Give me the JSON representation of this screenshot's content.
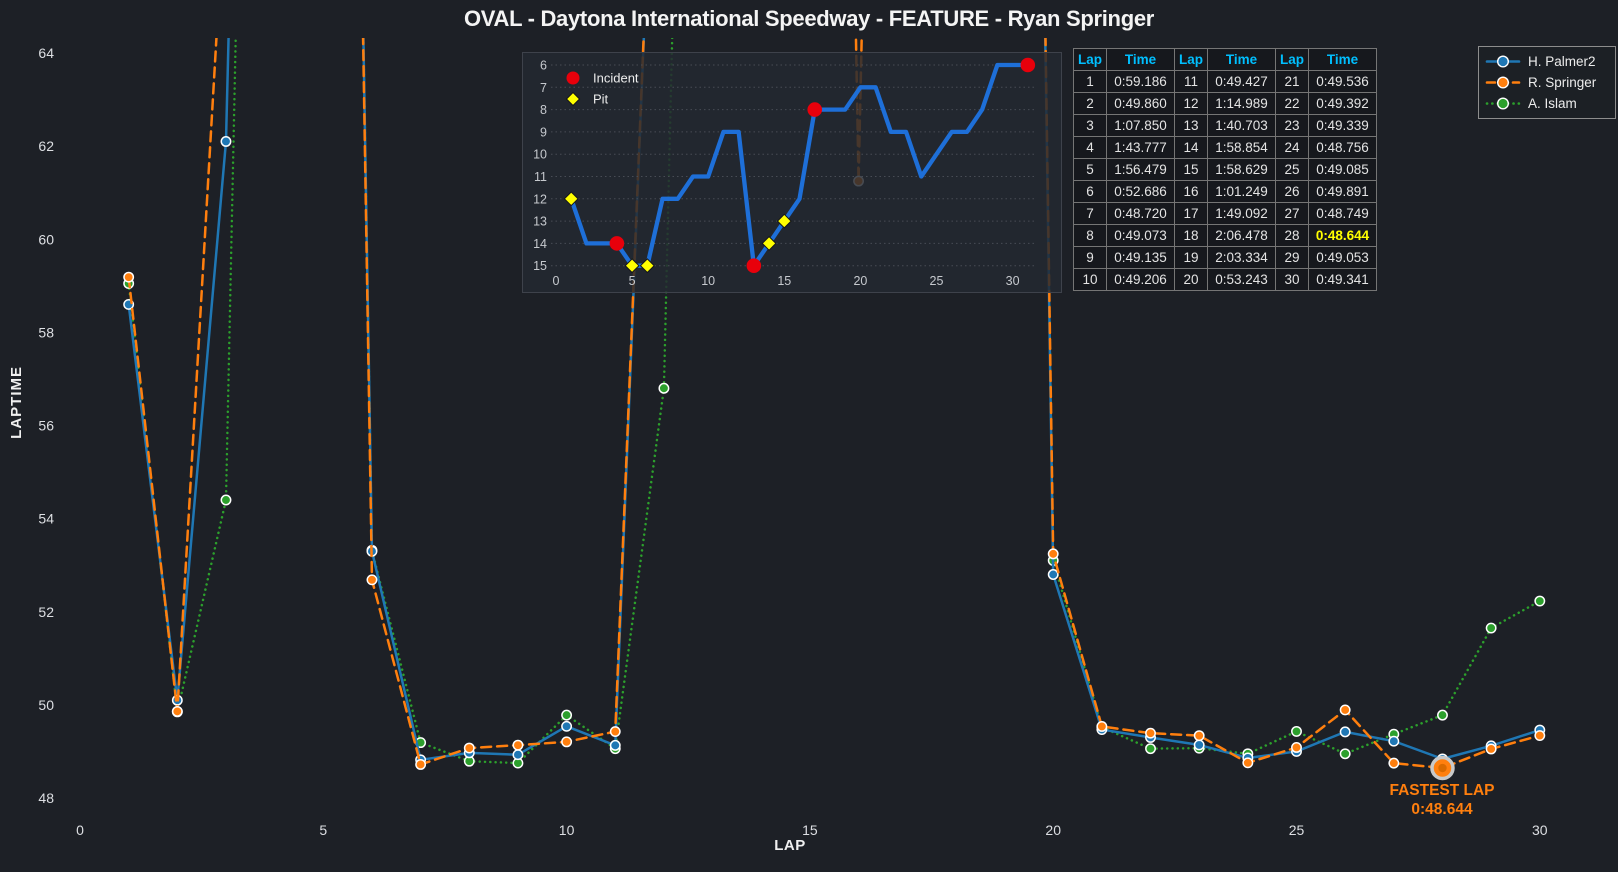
{
  "title": "OVAL - Daytona International Speedway - FEATURE - Ryan Springer",
  "colors": {
    "background": "#1d2026",
    "blue": "#1f77b4",
    "orange": "#ff7f0e",
    "green": "#2ca02c",
    "incident_red": "#e8000b",
    "pit_yellow": "#ffff00",
    "table_header": "#00bfff",
    "fastest_yellow": "#ffff00",
    "tick_text": "#dddfe3",
    "inset_line": "#1e6fd8"
  },
  "axes": {
    "y_label": "LAPTIME",
    "x_label": "LAP",
    "y_ticks": [
      48,
      50,
      52,
      54,
      56,
      58,
      60,
      62,
      64
    ],
    "x_ticks": [
      0,
      5,
      10,
      15,
      20,
      25,
      30
    ]
  },
  "legend": {
    "items": [
      {
        "label": "H. Palmer2",
        "color": "#1f77b4",
        "dash": "solid"
      },
      {
        "label": "R. Springer",
        "color": "#ff7f0e",
        "dash": "dashed"
      },
      {
        "label": "A. Islam",
        "color": "#2ca02c",
        "dash": "dotted"
      }
    ]
  },
  "annotation": {
    "title": "FASTEST LAP",
    "value": "0:48.644"
  },
  "lap_table": {
    "headers": [
      "Lap",
      "Time",
      "Lap",
      "Time",
      "Lap",
      "Time"
    ],
    "times": [
      "0:59.186",
      "0:49.860",
      "1:07.850",
      "1:43.777",
      "1:56.479",
      "0:52.686",
      "0:48.720",
      "0:49.073",
      "0:49.135",
      "0:49.206",
      "0:49.427",
      "1:14.989",
      "1:40.703",
      "1:58.854",
      "1:58.629",
      "1:01.249",
      "1:49.092",
      "2:06.478",
      "2:03.334",
      "0:53.243",
      "0:49.536",
      "0:49.392",
      "0:49.339",
      "0:48.756",
      "0:49.085",
      "0:49.891",
      "0:48.749",
      "0:48.644",
      "0:49.053",
      "0:49.341"
    ],
    "fastest_lap": 28
  },
  "inset_legend": [
    {
      "label": "Incident",
      "marker": "circle",
      "color": "#e8000b"
    },
    {
      "label": "Pit",
      "marker": "diamond",
      "color": "#ffff00"
    }
  ],
  "chart_data": [
    {
      "type": "line",
      "title": "OVAL - Daytona International Speedway - FEATURE - Ryan Springer",
      "xlabel": "LAP",
      "ylabel": "LAPTIME",
      "xlim": [
        -0.7,
        31.3
      ],
      "ylim": [
        47.7,
        64.3
      ],
      "grid": false,
      "legend_position": "top-right",
      "x": [
        1,
        2,
        3,
        4,
        5,
        6,
        7,
        8,
        9,
        10,
        11,
        12,
        13,
        14,
        15,
        16,
        17,
        18,
        19,
        20,
        21,
        22,
        23,
        24,
        25,
        26,
        27,
        28,
        29,
        30
      ],
      "series": [
        {
          "name": "H. Palmer2",
          "color": "#1f77b4",
          "line": "solid",
          "values_estimated": true,
          "values": [
            58.6,
            50.1,
            62.1,
            104,
            116,
            53.3,
            48.82,
            48.97,
            48.93,
            49.54,
            49.13,
            75,
            101,
            119,
            119,
            68,
            109,
            126,
            123,
            52.8,
            49.47,
            49.3,
            49.14,
            48.86,
            49.0,
            49.42,
            49.22,
            48.84,
            49.12,
            49.46
          ]
        },
        {
          "name": "R. Springer",
          "color": "#ff7f0e",
          "line": "dashed",
          "values_estimated": false,
          "values": [
            59.186,
            49.86,
            67.85,
            103.777,
            116.479,
            52.686,
            48.72,
            49.073,
            49.135,
            49.206,
            49.427,
            74.989,
            100.703,
            118.854,
            118.629,
            61.249,
            109.092,
            126.478,
            123.334,
            53.243,
            49.536,
            49.392,
            49.339,
            48.756,
            49.085,
            49.891,
            48.749,
            48.644,
            49.053,
            49.341
          ]
        },
        {
          "name": "A. Islam",
          "color": "#2ca02c",
          "line": "dotted",
          "values_estimated": true,
          "values": [
            59.05,
            49.85,
            54.4,
            104,
            116,
            53.32,
            49.19,
            48.79,
            48.75,
            49.78,
            49.06,
            56.8,
            101,
            119,
            119,
            68,
            109,
            126,
            123,
            53.1,
            49.52,
            49.06,
            49.07,
            48.95,
            49.43,
            48.95,
            49.37,
            49.78,
            51.65,
            52.23
          ]
        }
      ],
      "annotations": [
        {
          "text": "FASTEST LAP 0:48.644",
          "series": "R. Springer",
          "lap": 28,
          "value": 48.644
        }
      ],
      "note": "values above 64 run off the top of the plot (clipped); clipped values for H. Palmer2 and A. Islam are estimates"
    },
    {
      "type": "line",
      "name": "race-position-inset",
      "ylim_inverted": [
        5.5,
        15.6
      ],
      "x_ticks": [
        0,
        5,
        10,
        15,
        20,
        25,
        30
      ],
      "y_ticks": [
        6,
        7,
        8,
        9,
        10,
        11,
        12,
        13,
        14,
        15
      ],
      "x": [
        1,
        2,
        3,
        4,
        5,
        6,
        7,
        8,
        9,
        10,
        11,
        12,
        13,
        14,
        15,
        16,
        17,
        18,
        19,
        20,
        21,
        22,
        23,
        24,
        25,
        26,
        27,
        28,
        29,
        30,
        31
      ],
      "values": [
        12,
        14,
        14,
        14,
        15,
        15,
        12,
        12,
        11,
        11,
        9,
        9,
        15,
        14,
        13,
        12,
        8,
        8,
        8,
        7,
        7,
        9,
        9,
        11,
        10,
        9,
        9,
        8,
        6,
        6,
        6
      ],
      "incident_laps": [
        4,
        13,
        17,
        31
      ],
      "pit_laps": [
        1,
        5,
        6,
        14,
        15
      ],
      "line_color": "#1e6fd8"
    }
  ]
}
